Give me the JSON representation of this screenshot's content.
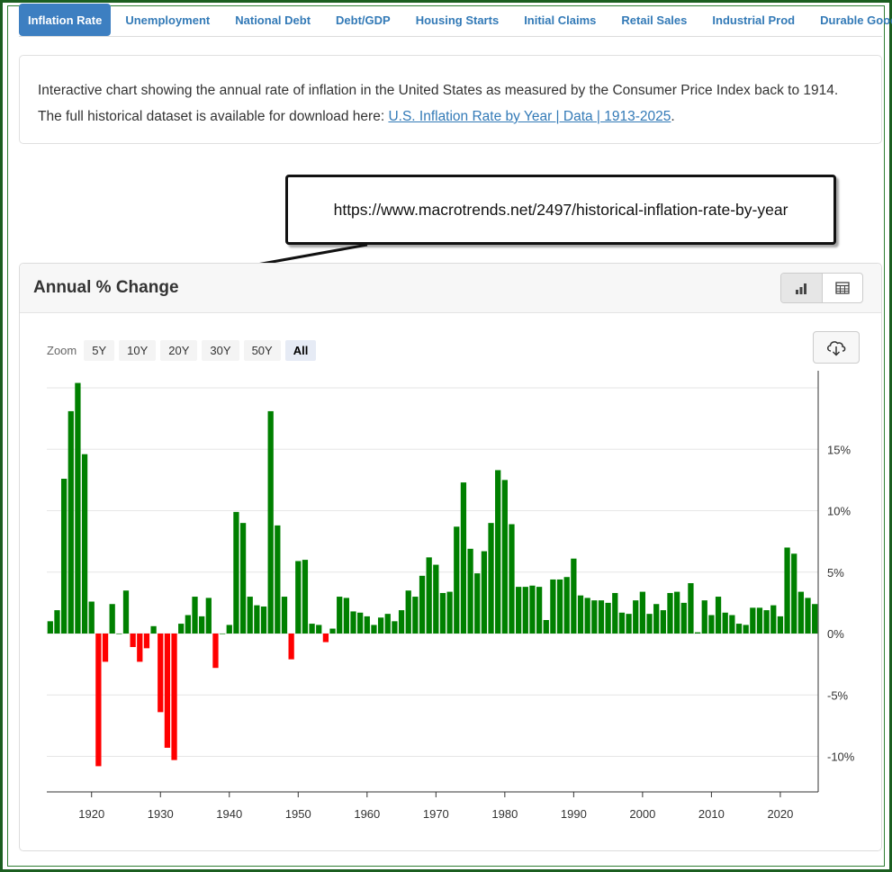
{
  "tabs": [
    {
      "label": "Inflation Rate",
      "active": true
    },
    {
      "label": "Unemployment",
      "active": false
    },
    {
      "label": "National Debt",
      "active": false
    },
    {
      "label": "Debt/GDP",
      "active": false
    },
    {
      "label": "Housing Starts",
      "active": false
    },
    {
      "label": "Initial Claims",
      "active": false
    },
    {
      "label": "Retail Sales",
      "active": false
    },
    {
      "label": "Industrial Prod",
      "active": false
    },
    {
      "label": "Durable Goods",
      "active": false
    }
  ],
  "description": {
    "line1": "Interactive chart showing the annual rate of inflation in the United States as measured by the Consumer Price Index back to 1914.",
    "line2_prefix": "The full historical dataset is available for download here: ",
    "link_text": "U.S. Inflation Rate by Year | Data | 1913-2025",
    "line2_suffix": "."
  },
  "callout": {
    "text": "https://www.macrotrends.net/2497/historical-inflation-rate-by-year"
  },
  "panel": {
    "title": "Annual % Change",
    "view_icons": [
      "bar-chart-icon",
      "table-icon"
    ],
    "download_icon": "cloud-download-icon"
  },
  "zoom": {
    "label": "Zoom",
    "options": [
      "5Y",
      "10Y",
      "20Y",
      "30Y",
      "50Y",
      "All"
    ],
    "selected": "All"
  },
  "colors": {
    "positive": "#008000",
    "negative": "#ff0000",
    "tab_active_bg": "#3d7fc1",
    "link": "#337ab7"
  },
  "chart_data": {
    "type": "bar",
    "title": "Annual % Change",
    "xlabel": "",
    "ylabel": "",
    "y_unit": "%",
    "ylim": [
      -13,
      20.5
    ],
    "xlim": [
      1913.5,
      2025.5
    ],
    "y_ticks": [
      -10,
      -5,
      0,
      5,
      10,
      15
    ],
    "y_tick_labels": [
      "-10%",
      "-5%",
      "0%",
      "5%",
      "10%",
      "15%"
    ],
    "x_ticks": [
      1920,
      1930,
      1940,
      1950,
      1960,
      1970,
      1980,
      1990,
      2000,
      2010,
      2020
    ],
    "x_tick_labels": [
      "1920",
      "1930",
      "1940",
      "1950",
      "1960",
      "1970",
      "1980",
      "1990",
      "2000",
      "2010",
      "2020"
    ],
    "y_axis_side": "right",
    "grid": true,
    "legend": "none",
    "years": [
      1914,
      1915,
      1916,
      1917,
      1918,
      1919,
      1920,
      1921,
      1922,
      1923,
      1924,
      1925,
      1926,
      1927,
      1928,
      1929,
      1930,
      1931,
      1932,
      1933,
      1934,
      1935,
      1936,
      1937,
      1938,
      1939,
      1940,
      1941,
      1942,
      1943,
      1944,
      1945,
      1946,
      1947,
      1948,
      1949,
      1950,
      1951,
      1952,
      1953,
      1954,
      1955,
      1956,
      1957,
      1958,
      1959,
      1960,
      1961,
      1962,
      1963,
      1964,
      1965,
      1966,
      1967,
      1968,
      1969,
      1970,
      1971,
      1972,
      1973,
      1974,
      1975,
      1976,
      1977,
      1978,
      1979,
      1980,
      1981,
      1982,
      1983,
      1984,
      1985,
      1986,
      1987,
      1988,
      1989,
      1990,
      1991,
      1992,
      1993,
      1994,
      1995,
      1996,
      1997,
      1998,
      1999,
      2000,
      2001,
      2002,
      2003,
      2004,
      2005,
      2006,
      2007,
      2008,
      2009,
      2010,
      2011,
      2012,
      2013,
      2014,
      2015,
      2016,
      2017,
      2018,
      2019,
      2020,
      2021,
      2022,
      2023,
      2024,
      2025
    ],
    "values": [
      1.0,
      1.9,
      12.6,
      18.1,
      20.4,
      14.6,
      2.6,
      -10.8,
      -2.3,
      2.4,
      0.0,
      3.5,
      -1.1,
      -2.3,
      -1.2,
      0.6,
      -6.4,
      -9.3,
      -10.3,
      0.8,
      1.5,
      3.0,
      1.4,
      2.9,
      -2.8,
      0.0,
      0.7,
      9.9,
      9.0,
      3.0,
      2.3,
      2.2,
      18.1,
      8.8,
      3.0,
      -2.1,
      5.9,
      6.0,
      0.8,
      0.7,
      -0.7,
      0.4,
      3.0,
      2.9,
      1.8,
      1.7,
      1.4,
      0.7,
      1.3,
      1.6,
      1.0,
      1.9,
      3.5,
      3.0,
      4.7,
      6.2,
      5.6,
      3.3,
      3.4,
      8.7,
      12.3,
      6.9,
      4.9,
      6.7,
      9.0,
      13.3,
      12.5,
      8.9,
      3.8,
      3.8,
      3.9,
      3.8,
      1.1,
      4.4,
      4.4,
      4.6,
      6.1,
      3.1,
      2.9,
      2.7,
      2.7,
      2.5,
      3.3,
      1.7,
      1.6,
      2.7,
      3.4,
      1.6,
      2.4,
      1.9,
      3.3,
      3.4,
      2.5,
      4.1,
      0.1,
      2.7,
      1.5,
      3.0,
      1.7,
      1.5,
      0.8,
      0.7,
      2.1,
      2.1,
      1.9,
      2.3,
      1.4,
      7.0,
      6.5,
      3.4,
      2.9,
      2.4
    ]
  }
}
